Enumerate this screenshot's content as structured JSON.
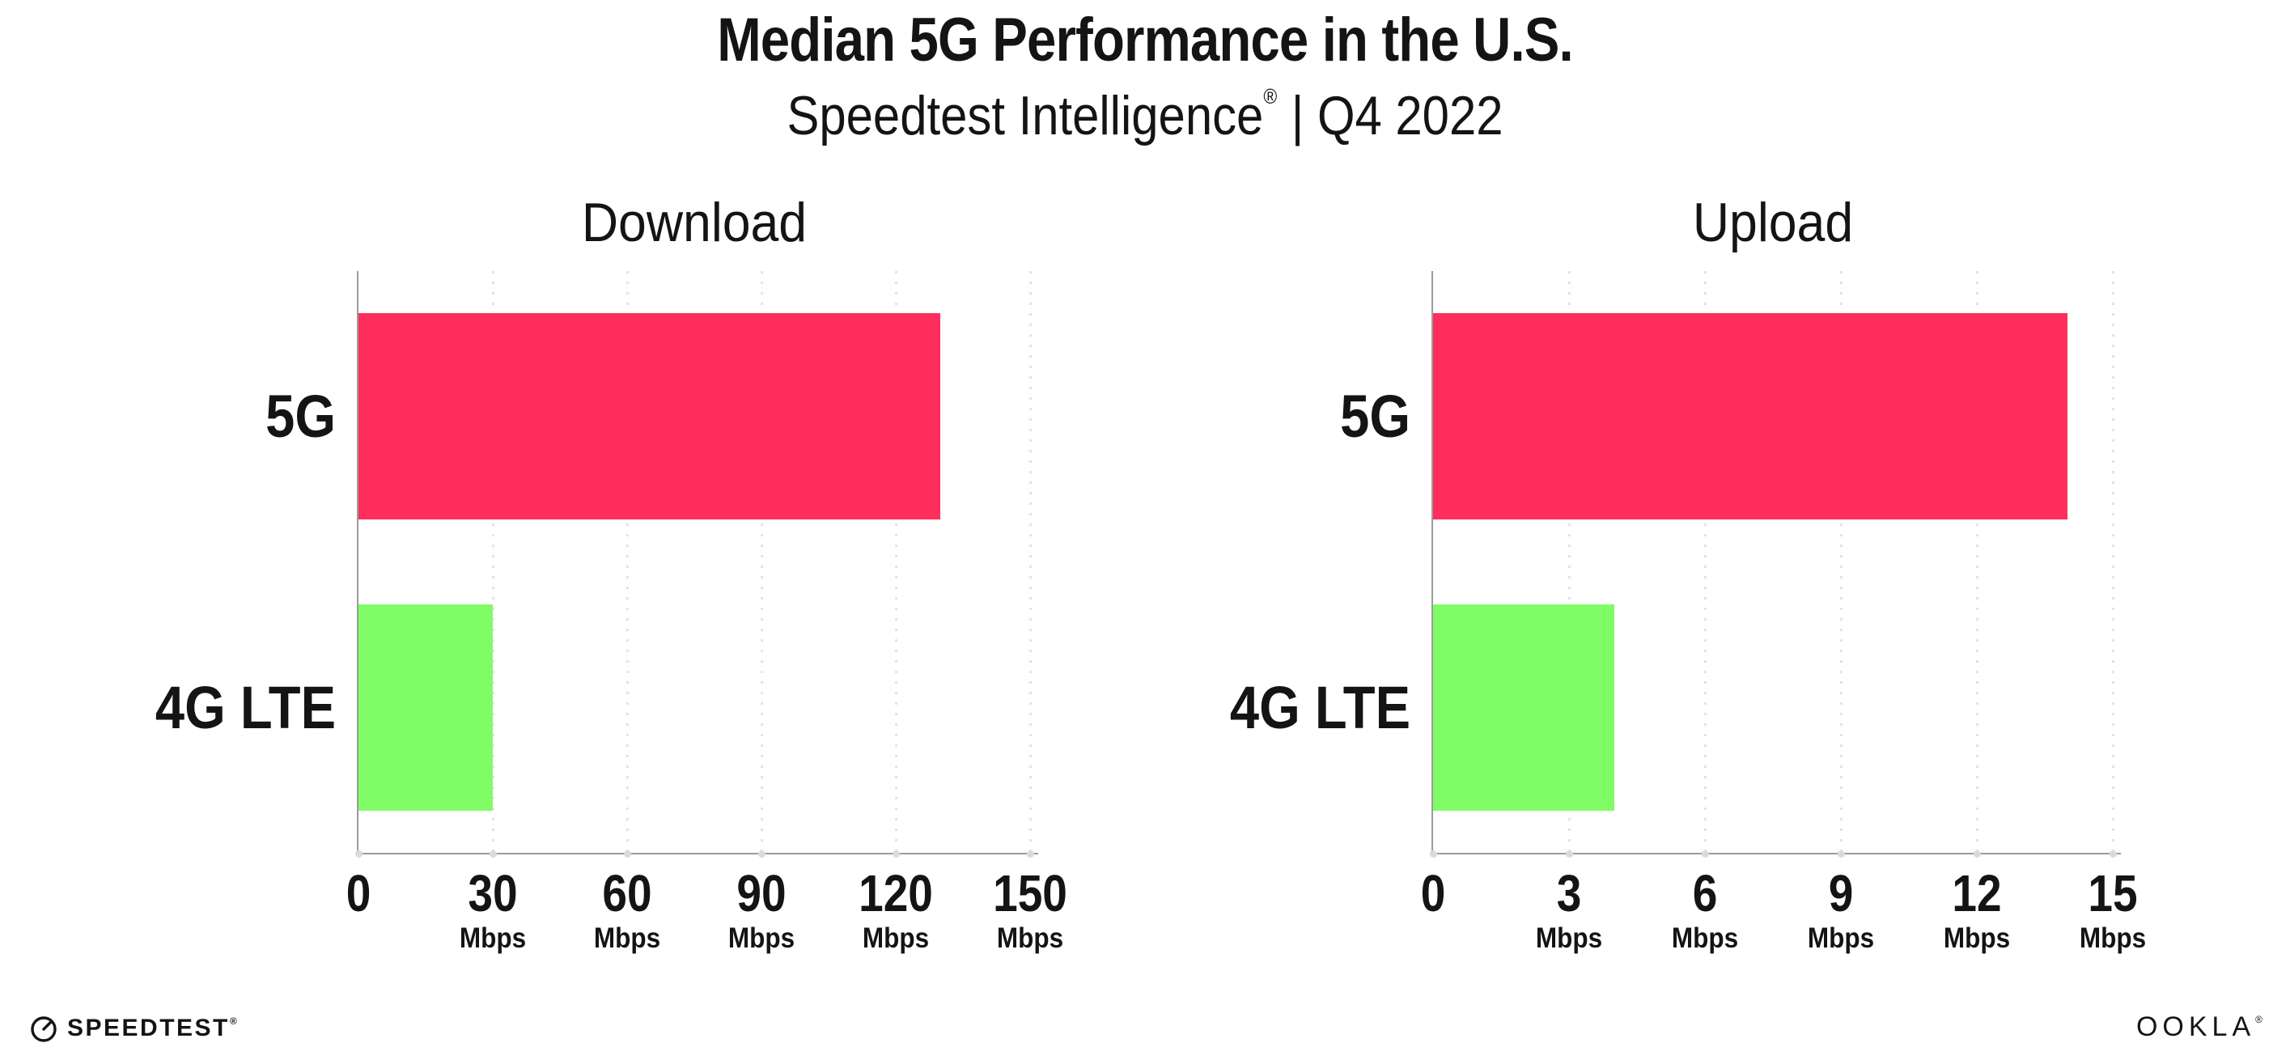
{
  "header": {
    "title": "Median 5G Performance in the U.S.",
    "subtitle": {
      "brand": "Speedtest Intelligence",
      "registered": "®",
      "rest": "| Q4 2022",
      "full": "Speedtest Intelligence® | Q4 2022"
    }
  },
  "chart_data": [
    {
      "type": "bar",
      "orientation": "horizontal",
      "title": "Download",
      "categories": [
        "5G",
        "4G LTE"
      ],
      "values": [
        130,
        30
      ],
      "unit": "Mbps",
      "xlim": [
        0,
        150
      ],
      "xticks": [
        0,
        30,
        60,
        90,
        120,
        150
      ],
      "unit_shown_on_zero_tick": false,
      "grid": "vertical-dotted",
      "legend": "none",
      "bar_colors": [
        "#FF2E5C",
        "#80FC66"
      ]
    },
    {
      "type": "bar",
      "orientation": "horizontal",
      "title": "Upload",
      "categories": [
        "5G",
        "4G LTE"
      ],
      "values": [
        14,
        4
      ],
      "unit": "Mbps",
      "xlim": [
        0,
        15
      ],
      "xticks": [
        0,
        3,
        6,
        9,
        12,
        15
      ],
      "unit_shown_on_zero_tick": false,
      "grid": "vertical-dotted",
      "legend": "none",
      "bar_colors": [
        "#FF2E5C",
        "#80FC66"
      ]
    }
  ],
  "colors": {
    "bar_5g": "#FF2E5C",
    "bar_4g_lte": "#80FC66",
    "axis": "#9B9B9B",
    "gridline_dot": "#E2E2EC",
    "axis_tick_dot": "#D9D9E3",
    "text": "#141414",
    "background": "#FFFFFF"
  },
  "footer": {
    "speedtest_label": "SPEEDTEST",
    "speedtest_mark": "®",
    "ookla_label": "OOKLA",
    "ookla_mark": "®"
  }
}
